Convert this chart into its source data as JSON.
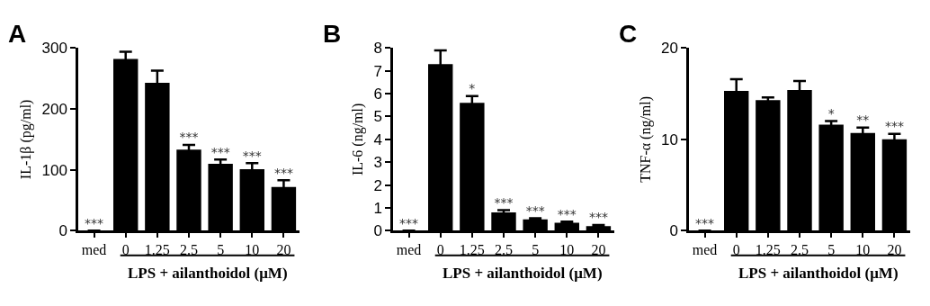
{
  "chart_data": [
    {
      "type": "bar",
      "title": "A",
      "ylabel": "IL-1β (pg/ml)",
      "xlabel": "LPS + ailanthoidol (μM)",
      "categories": [
        "med",
        "0",
        "1.25",
        "2.5",
        "5",
        "10",
        "20"
      ],
      "color": "#000000",
      "values": [
        0,
        282,
        243,
        133,
        110,
        101,
        72
      ],
      "errors": [
        null,
        12,
        20,
        8,
        7,
        10,
        11
      ],
      "value_labels": [
        "***",
        null,
        null,
        "***",
        "***",
        "***",
        "***"
      ],
      "ylim": [
        0,
        300
      ],
      "yticks": [
        0,
        100,
        200,
        300
      ]
    },
    {
      "type": "bar",
      "title": "B",
      "ylabel": "IL-6 (ng/ml)",
      "xlabel": "LPS + ailanthoidol (μM)",
      "categories": [
        "med",
        "0",
        "1.25",
        "2.5",
        "5",
        "10",
        "20"
      ],
      "color": "#000000",
      "values": [
        0,
        7.3,
        5.6,
        0.8,
        0.5,
        0.35,
        0.2
      ],
      "errors": [
        null,
        0.6,
        0.3,
        0.1,
        0.05,
        0.05,
        0.05
      ],
      "value_labels": [
        "***",
        null,
        "*",
        "***",
        "***",
        "***",
        "***"
      ],
      "ylim": [
        0,
        8
      ],
      "yticks": [
        0,
        1,
        2,
        3,
        4,
        5,
        6,
        7,
        8
      ]
    },
    {
      "type": "bar",
      "title": "C",
      "ylabel": "TNF-α (ng/ml)",
      "xlabel": "LPS + ailanthoidol (μM)",
      "categories": [
        "med",
        "0",
        "1.25",
        "2.5",
        "5",
        "10",
        "20"
      ],
      "color": "#000000",
      "values": [
        0,
        15.3,
        14.3,
        15.4,
        11.6,
        10.7,
        10.0
      ],
      "errors": [
        null,
        1.3,
        0.3,
        1.0,
        0.4,
        0.6,
        0.6
      ],
      "value_labels": [
        "***",
        null,
        null,
        null,
        "*",
        "**",
        "***"
      ],
      "ylim": [
        0,
        20
      ],
      "yticks": [
        0,
        10,
        20
      ]
    }
  ]
}
